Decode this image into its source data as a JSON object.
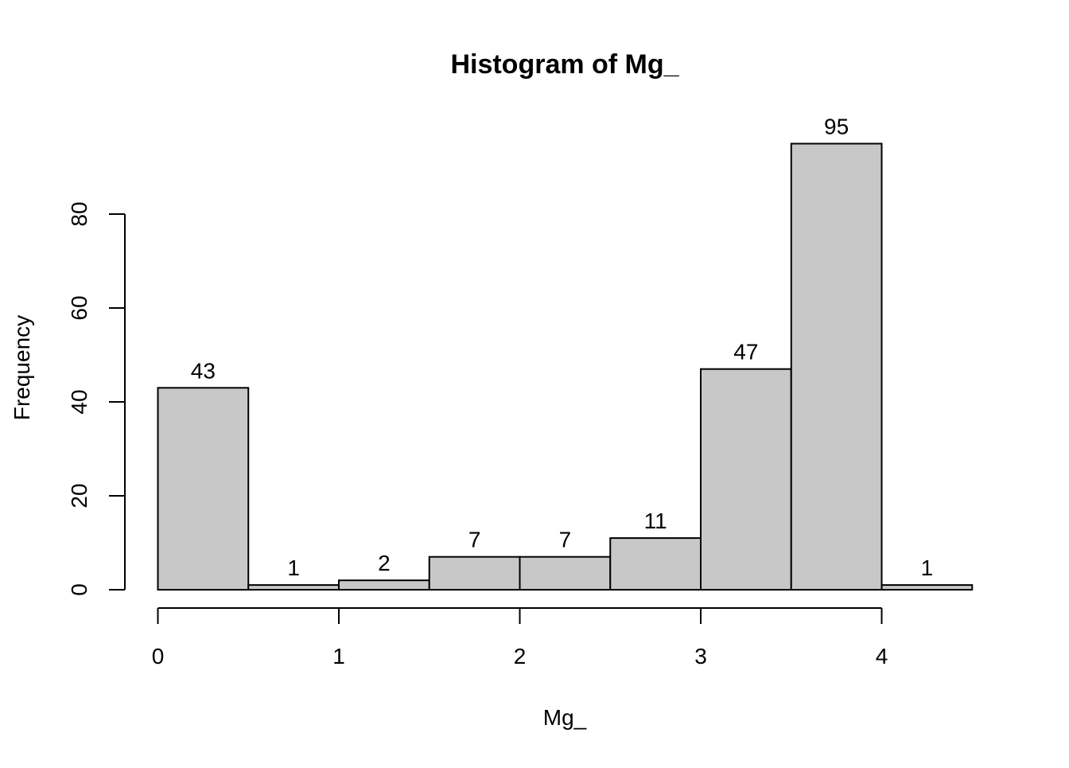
{
  "chart_data": {
    "type": "bar",
    "title": "Histogram of Mg_",
    "xlabel": "Mg_",
    "ylabel": "Frequency",
    "bins": [
      {
        "start": 0.0,
        "end": 0.5,
        "count": 43,
        "label": "43"
      },
      {
        "start": 0.5,
        "end": 1.0,
        "count": 1,
        "label": "1"
      },
      {
        "start": 1.0,
        "end": 1.5,
        "count": 2,
        "label": "2"
      },
      {
        "start": 1.5,
        "end": 2.0,
        "count": 7,
        "label": "7"
      },
      {
        "start": 2.0,
        "end": 2.5,
        "count": 7,
        "label": "7"
      },
      {
        "start": 2.5,
        "end": 3.0,
        "count": 11,
        "label": "11"
      },
      {
        "start": 3.0,
        "end": 3.5,
        "count": 47,
        "label": "47"
      },
      {
        "start": 3.5,
        "end": 4.0,
        "count": 95,
        "label": "95"
      },
      {
        "start": 4.0,
        "end": 4.5,
        "count": 1,
        "label": "1"
      }
    ],
    "x_ticks": [
      {
        "value": 0,
        "label": "0"
      },
      {
        "value": 1,
        "label": "1"
      },
      {
        "value": 2,
        "label": "2"
      },
      {
        "value": 3,
        "label": "3"
      },
      {
        "value": 4,
        "label": "4"
      }
    ],
    "y_ticks": [
      {
        "value": 0,
        "label": "0"
      },
      {
        "value": 20,
        "label": "20"
      },
      {
        "value": 40,
        "label": "40"
      },
      {
        "value": 60,
        "label": "60"
      },
      {
        "value": 80,
        "label": "80"
      }
    ],
    "xlim": [
      0,
      4.5
    ],
    "ylim": [
      0,
      95
    ],
    "grid": false,
    "bar_color": "#c8c8c8",
    "edge_color": "#000000"
  }
}
